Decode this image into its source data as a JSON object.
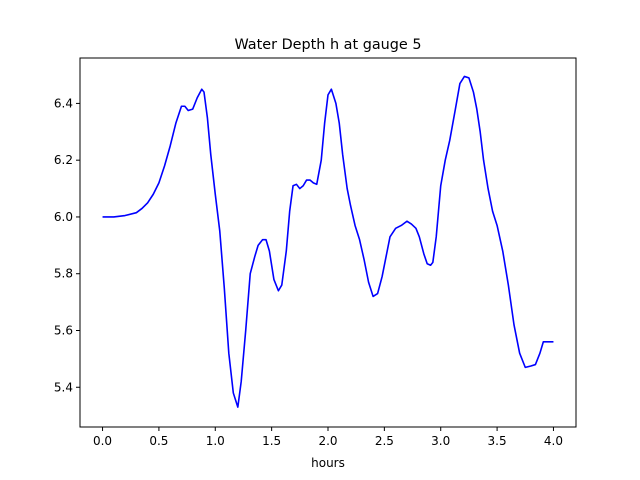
{
  "chart_data": {
    "type": "line",
    "title": "Water Depth h at gauge 5",
    "xlabel": "hours",
    "ylabel": "",
    "xlim": [
      -0.2,
      4.2
    ],
    "ylim": [
      5.26,
      6.56
    ],
    "xticks": [
      0.0,
      0.5,
      1.0,
      1.5,
      2.0,
      2.5,
      3.0,
      3.5,
      4.0
    ],
    "xtick_labels": [
      "0.0",
      "0.5",
      "1.0",
      "1.5",
      "2.0",
      "2.5",
      "3.0",
      "3.5",
      "4.0"
    ],
    "yticks": [
      5.4,
      5.6,
      5.8,
      6.0,
      6.2,
      6.4
    ],
    "ytick_labels": [
      "5.4",
      "5.6",
      "5.8",
      "6.0",
      "6.2",
      "6.4"
    ],
    "grid": false,
    "legend": "none",
    "series": [
      {
        "color": "#0000ff",
        "x": [
          0.0,
          0.1,
          0.2,
          0.3,
          0.35,
          0.4,
          0.45,
          0.5,
          0.55,
          0.6,
          0.65,
          0.7,
          0.73,
          0.76,
          0.8,
          0.84,
          0.88,
          0.9,
          0.93,
          0.96,
          1.0,
          1.04,
          1.08,
          1.12,
          1.16,
          1.2,
          1.23,
          1.27,
          1.31,
          1.35,
          1.38,
          1.42,
          1.45,
          1.48,
          1.52,
          1.56,
          1.59,
          1.63,
          1.66,
          1.69,
          1.72,
          1.75,
          1.78,
          1.81,
          1.84,
          1.87,
          1.9,
          1.94,
          1.97,
          2.0,
          2.03,
          2.07,
          2.1,
          2.13,
          2.17,
          2.2,
          2.24,
          2.28,
          2.32,
          2.36,
          2.4,
          2.44,
          2.48,
          2.52,
          2.55,
          2.6,
          2.65,
          2.7,
          2.74,
          2.78,
          2.81,
          2.85,
          2.88,
          2.91,
          2.93,
          2.96,
          2.98,
          3.0,
          3.04,
          3.08,
          3.13,
          3.17,
          3.21,
          3.25,
          3.29,
          3.32,
          3.35,
          3.38,
          3.42,
          3.46,
          3.5,
          3.55,
          3.6,
          3.65,
          3.7,
          3.75,
          3.8,
          3.84,
          3.88,
          3.91,
          3.95,
          3.98,
          4.0
        ],
        "y": [
          6.0,
          6.0,
          6.005,
          6.015,
          6.03,
          6.05,
          6.08,
          6.12,
          6.18,
          6.25,
          6.33,
          6.39,
          6.39,
          6.375,
          6.38,
          6.42,
          6.45,
          6.44,
          6.35,
          6.22,
          6.08,
          5.95,
          5.75,
          5.52,
          5.38,
          5.33,
          5.42,
          5.6,
          5.8,
          5.86,
          5.9,
          5.92,
          5.92,
          5.88,
          5.78,
          5.74,
          5.76,
          5.88,
          6.02,
          6.11,
          6.115,
          6.1,
          6.11,
          6.13,
          6.13,
          6.12,
          6.115,
          6.2,
          6.33,
          6.43,
          6.45,
          6.4,
          6.33,
          6.22,
          6.1,
          6.04,
          5.97,
          5.92,
          5.85,
          5.77,
          5.72,
          5.73,
          5.79,
          5.87,
          5.93,
          5.96,
          5.97,
          5.985,
          5.975,
          5.96,
          5.93,
          5.87,
          5.835,
          5.83,
          5.84,
          5.93,
          6.02,
          6.11,
          6.2,
          6.27,
          6.38,
          6.47,
          6.495,
          6.49,
          6.44,
          6.38,
          6.3,
          6.2,
          6.1,
          6.02,
          5.97,
          5.88,
          5.76,
          5.62,
          5.52,
          5.47,
          5.475,
          5.48,
          5.52,
          5.56,
          5.56,
          5.56,
          5.56
        ]
      }
    ]
  }
}
